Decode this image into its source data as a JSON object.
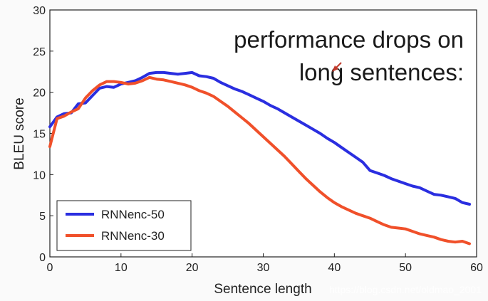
{
  "chart_data": {
    "type": "line",
    "xlabel": "Sentence length",
    "ylabel": "BLEU score",
    "xlim": [
      0,
      60
    ],
    "ylim": [
      0,
      30
    ],
    "xticks": [
      "0",
      "10",
      "20",
      "30",
      "40",
      "50",
      "60"
    ],
    "yticks": [
      "0",
      "5",
      "10",
      "15",
      "20",
      "25",
      "30"
    ],
    "annotation": [
      "performance drops on",
      "long sentences:"
    ],
    "legend_position": "lower-left",
    "grid": false,
    "x": [
      0,
      1,
      2,
      3,
      4,
      5,
      6,
      7,
      8,
      9,
      10,
      11,
      12,
      13,
      14,
      15,
      16,
      17,
      18,
      19,
      20,
      21,
      22,
      23,
      24,
      25,
      26,
      27,
      28,
      29,
      30,
      31,
      32,
      33,
      34,
      35,
      36,
      37,
      38,
      39,
      40,
      41,
      42,
      43,
      44,
      45,
      46,
      47,
      48,
      49,
      50,
      51,
      52,
      53,
      54,
      55,
      56,
      57,
      58,
      59
    ],
    "series": [
      {
        "name": "RNNenc-50",
        "color": "#2a2ee0",
        "values": [
          15.8,
          17.0,
          17.4,
          17.5,
          18.6,
          18.7,
          19.6,
          20.5,
          20.7,
          20.6,
          21.0,
          21.2,
          21.4,
          21.8,
          22.3,
          22.4,
          22.4,
          22.3,
          22.2,
          22.3,
          22.4,
          22.0,
          21.9,
          21.7,
          21.2,
          20.8,
          20.4,
          20.1,
          19.7,
          19.3,
          18.9,
          18.4,
          18.0,
          17.5,
          17.0,
          16.5,
          16.0,
          15.5,
          15.0,
          14.4,
          13.9,
          13.3,
          12.7,
          12.1,
          11.5,
          10.5,
          10.2,
          9.9,
          9.5,
          9.2,
          8.9,
          8.6,
          8.4,
          8.0,
          7.6,
          7.5,
          7.3,
          7.1,
          6.6,
          6.4
        ]
      },
      {
        "name": "RNNenc-30",
        "color": "#f0502a",
        "values": [
          13.4,
          16.8,
          17.1,
          17.6,
          18.0,
          19.3,
          20.2,
          20.9,
          21.3,
          21.3,
          21.2,
          21.0,
          21.1,
          21.4,
          21.8,
          21.6,
          21.5,
          21.3,
          21.1,
          20.9,
          20.6,
          20.2,
          19.9,
          19.5,
          18.9,
          18.3,
          17.6,
          16.9,
          16.2,
          15.4,
          14.6,
          13.8,
          13.0,
          12.2,
          11.3,
          10.4,
          9.5,
          8.7,
          7.9,
          7.2,
          6.6,
          6.1,
          5.7,
          5.3,
          5.0,
          4.7,
          4.3,
          3.9,
          3.6,
          3.5,
          3.4,
          3.1,
          2.8,
          2.6,
          2.4,
          2.1,
          1.9,
          1.8,
          1.9,
          1.6
        ]
      }
    ]
  },
  "watermark": "https://blog.csdn.net/oldmao_2001"
}
